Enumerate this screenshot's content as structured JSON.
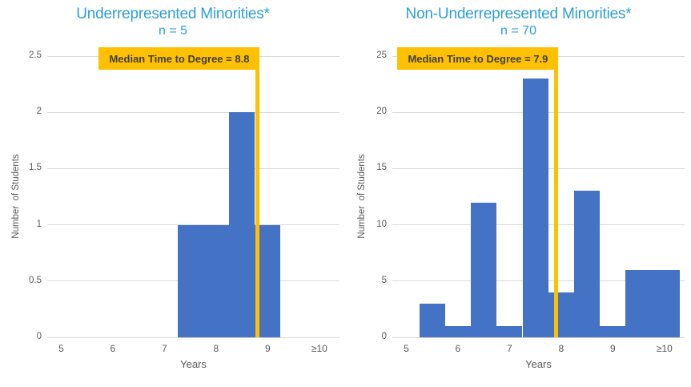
{
  "colors": {
    "bar": "#4472C4",
    "accent_gold": "#FFC000",
    "title_blue": "#2E9FD8",
    "axis_text": "#595959",
    "gridline": "#D9D9D9",
    "median_text": "#404040",
    "background": "#FFFFFF"
  },
  "x_axis": {
    "title": "Years",
    "ticks": [
      "5",
      "6",
      "7",
      "8",
      "9",
      "≥10"
    ],
    "tick_values": [
      5,
      6,
      7,
      8,
      9,
      10
    ],
    "min": 4.73,
    "max": 10.39
  },
  "y_axis_title": "Number  of Students",
  "chart_data": [
    {
      "type": "bar",
      "title": "Underrepresented Minorities*",
      "subtitle": "n = 5",
      "n": 5,
      "median_label": "Median Time to Degree = 8.8",
      "median_value": 8.8,
      "xlabel": "Years",
      "ylabel": "Number of Students",
      "x_tick_labels": [
        "5",
        "6",
        "7",
        "8",
        "9",
        "≥10"
      ],
      "y_axis": {
        "ticks": [
          "2.5",
          "2",
          "1.5",
          "1",
          "0.5",
          "0"
        ],
        "max": 2.5,
        "min": 0,
        "step": 0.5
      },
      "grid": true,
      "legend": false,
      "bins": [
        {
          "from": 7.25,
          "to": 7.75,
          "count": 1
        },
        {
          "from": 7.75,
          "to": 8.25,
          "count": 1
        },
        {
          "from": 8.25,
          "to": 8.75,
          "count": 2
        },
        {
          "from": 8.75,
          "to": 9.25,
          "count": 1
        }
      ]
    },
    {
      "type": "bar",
      "title": "Non-Underrepresented Minorities*",
      "subtitle": "n = 70",
      "n": 70,
      "median_label": "Median Time to Degree = 7.9",
      "median_value": 7.9,
      "xlabel": "Years",
      "ylabel": "Number of Students",
      "x_tick_labels": [
        "5",
        "6",
        "7",
        "8",
        "9",
        "≥10"
      ],
      "y_axis": {
        "ticks": [
          "25",
          "20",
          "15",
          "10",
          "5",
          "0"
        ],
        "max": 25,
        "min": 0,
        "step": 5
      },
      "grid": true,
      "legend": false,
      "bins": [
        {
          "from": 5.25,
          "to": 5.75,
          "count": 3
        },
        {
          "from": 5.75,
          "to": 6.25,
          "count": 1
        },
        {
          "from": 6.25,
          "to": 6.75,
          "count": 12
        },
        {
          "from": 6.75,
          "to": 7.25,
          "count": 1
        },
        {
          "from": 7.25,
          "to": 7.75,
          "count": 23
        },
        {
          "from": 7.75,
          "to": 8.25,
          "count": 4
        },
        {
          "from": 8.25,
          "to": 8.75,
          "count": 13
        },
        {
          "from": 8.75,
          "to": 9.25,
          "count": 1
        },
        {
          "from": 9.25,
          "to": 9.75,
          "count": 6
        },
        {
          "from": 9.75,
          "to": 10.3,
          "count": 6
        }
      ]
    }
  ]
}
